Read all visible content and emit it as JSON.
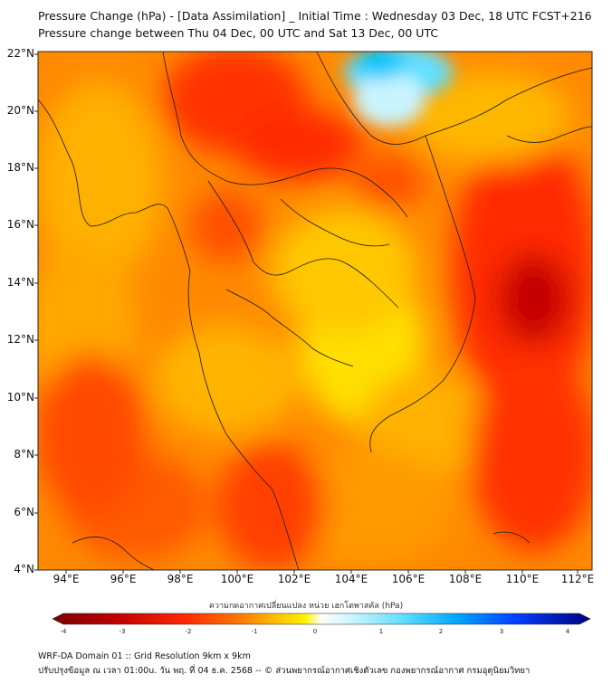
{
  "header": {
    "title_line1": "Pressure Change (hPa) - [Data Assimilation] _ Initial Time : Wednesday 03 Dec, 18 UTC FCST+216",
    "title_line2": "Pressure change between Thu 04 Dec, 00 UTC and Sat 13 Dec, 00 UTC"
  },
  "map": {
    "lat_labels": [
      "22°N",
      "20°N",
      "18°N",
      "16°N",
      "14°N",
      "12°N",
      "10°N",
      "8°N",
      "6°N",
      "4°N"
    ],
    "lon_labels": [
      "94°E",
      "96°E",
      "98°E",
      "100°E",
      "102°E",
      "104°E",
      "106°E",
      "108°E",
      "110°E",
      "112°E"
    ],
    "lat_range": [
      4,
      22
    ],
    "lon_range": [
      93,
      112.5
    ],
    "field_description": "pressure change field, mostly negative (falling pressure) with rises over the Gulf of Tonkin"
  },
  "colorbar": {
    "title": "ความกดอากาศเปลี่ยนแปลง หน่วย เฮกโตพาสคัล (hPa)",
    "ticks": [
      "-4",
      "-3",
      "-2",
      "-1",
      "0",
      "1",
      "2",
      "3",
      "4"
    ],
    "range": [
      -4,
      4
    ],
    "colors": [
      "#7a0000",
      "#c00000",
      "#ff2a00",
      "#ff7a00",
      "#ffc400",
      "#fff200",
      "#fffbb0",
      "#ffffff",
      "#c8f4ff",
      "#60e0ff",
      "#00a8ff",
      "#0040ff",
      "#0010c0",
      "#000080"
    ]
  },
  "footer": {
    "line1": "WRF-DA Domain 01 :: Grid Resolution 9km x 9km",
    "line2": "ปรับปรุงข้อมูล ณ เวลา 01:00u. วัน พฤ. ที่ 04 ธ.ค. 2568 -- © ส่วนพยากรณ์อากาศเชิงตัวเลข กองพยากรณ์อากาศ กรมอุตุนิยมวิทยา"
  }
}
